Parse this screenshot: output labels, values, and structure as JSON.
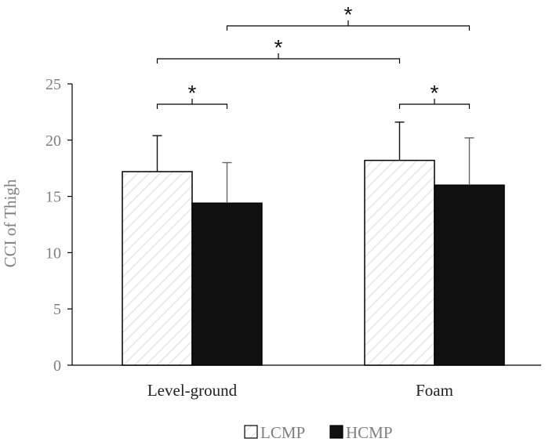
{
  "chart_data": {
    "type": "bar",
    "title": "",
    "xlabel": "",
    "ylabel": "CCI of Thigh",
    "ylim": [
      0,
      25
    ],
    "yticks": [
      0,
      5,
      10,
      15,
      20,
      25
    ],
    "categories": [
      "Level-ground",
      "Foam"
    ],
    "series": [
      {
        "name": "LCMP",
        "values": [
          17.2,
          18.2
        ],
        "errors": [
          3.2,
          3.4
        ],
        "fill": "hatched-light-gray",
        "color": "#ffffff",
        "pattern_color": "#e6e6e6",
        "edge_color": "#000000"
      },
      {
        "name": "HCMP",
        "values": [
          14.4,
          16.0
        ],
        "errors": [
          3.6,
          4.2
        ],
        "fill": "solid-black",
        "color": "#111111",
        "pattern_color": "",
        "edge_color": "#000000"
      }
    ],
    "significance": [
      {
        "label": "*",
        "from": {
          "category": 0,
          "series": 0
        },
        "to": {
          "category": 0,
          "series": 1
        }
      },
      {
        "label": "*",
        "from": {
          "category": 1,
          "series": 0
        },
        "to": {
          "category": 1,
          "series": 1
        }
      },
      {
        "label": "*",
        "from": {
          "category": 0,
          "series": 0
        },
        "to": {
          "category": 1,
          "series": 0
        }
      },
      {
        "label": "*",
        "from": {
          "category": 0,
          "series": 1
        },
        "to": {
          "category": 1,
          "series": 1
        }
      }
    ],
    "legend": {
      "position": "bottom-center",
      "entries": [
        "LCMP",
        "HCMP"
      ]
    },
    "grid": false
  }
}
